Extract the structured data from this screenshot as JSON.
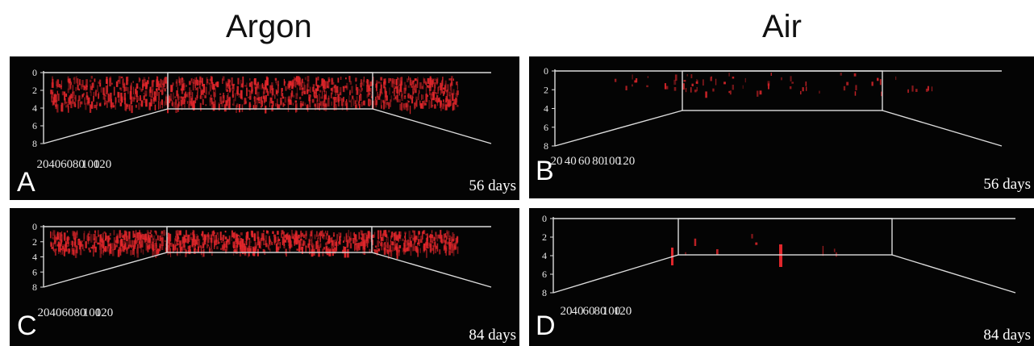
{
  "headers": {
    "left": "Argon",
    "right": "Air"
  },
  "colors": {
    "panel_bg": "#040404",
    "frame": "#dcdcdc",
    "signal": "#e0262b",
    "text": "#ffffff"
  },
  "axes": {
    "x_ticks": [
      "20",
      "40",
      "60",
      "80",
      "100",
      "120"
    ],
    "y_ticks": [
      "0",
      "2",
      "4",
      "6",
      "8"
    ]
  },
  "panels": [
    {
      "id": "A",
      "letter": "A",
      "days": "56 days",
      "signal": "strong"
    },
    {
      "id": "B",
      "letter": "B",
      "days": "56 days",
      "signal": "sparse"
    },
    {
      "id": "C",
      "letter": "C",
      "days": "84 days",
      "signal": "strong"
    },
    {
      "id": "D",
      "letter": "D",
      "days": "84 days",
      "signal": "minimal"
    }
  ]
}
